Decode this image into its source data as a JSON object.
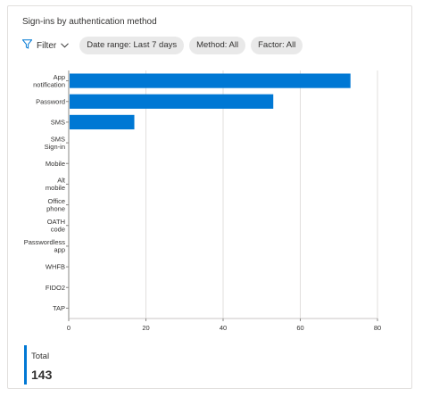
{
  "card": {
    "title": "Sign-ins by authentication method"
  },
  "filters": {
    "filter_label": "Filter",
    "date_range": "Date range: Last 7 days",
    "method": "Method: All",
    "factor": "Factor: All"
  },
  "colors": {
    "bar": "#0078d4",
    "grid": "#e1dfdd",
    "text": "#323130"
  },
  "chart_data": {
    "type": "bar",
    "orientation": "horizontal",
    "title": "Sign-ins by authentication method",
    "xlabel": "",
    "ylabel": "",
    "categories": [
      [
        "App",
        "notification"
      ],
      [
        "Password"
      ],
      [
        "SMS"
      ],
      [
        "SMS",
        "Sign-in"
      ],
      [
        "Mobile"
      ],
      [
        "Alt",
        "mobile"
      ],
      [
        "Office",
        "phone"
      ],
      [
        "OATH",
        "code"
      ],
      [
        "Passwordless",
        "app"
      ],
      [
        "WHFB"
      ],
      [
        "FIDO2"
      ],
      [
        "TAP"
      ]
    ],
    "values": [
      73,
      53,
      17,
      0,
      0,
      0,
      0,
      0,
      0,
      0,
      0,
      0
    ],
    "xlim": [
      0,
      80
    ],
    "xticks": [
      0,
      20,
      40,
      60,
      80
    ],
    "grid": true,
    "legend": "none"
  },
  "total": {
    "label": "Total",
    "value": "143"
  }
}
